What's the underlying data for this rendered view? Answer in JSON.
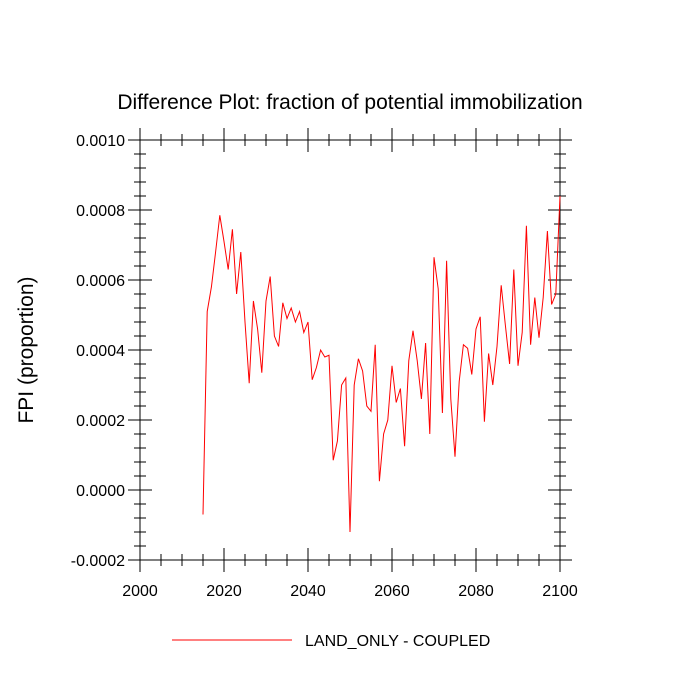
{
  "chart_data": {
    "type": "line",
    "title": "Difference Plot: fraction of potential immobilization",
    "xlabel": "",
    "ylabel": "FPI  (proportion)",
    "xlim": [
      2000,
      2100
    ],
    "ylim": [
      -0.0002,
      0.001
    ],
    "x_ticks": [
      2000,
      2020,
      2040,
      2060,
      2080,
      2100
    ],
    "x_tick_labels": [
      "2000",
      "2020",
      "2040",
      "2060",
      "2080",
      "2100"
    ],
    "y_ticks": [
      -0.0002,
      0.0,
      0.0002,
      0.0004,
      0.0006,
      0.0008,
      0.001
    ],
    "y_tick_labels": [
      "-0.0002",
      "0.0000",
      "0.0002",
      "0.0004",
      "0.0006",
      "0.0008",
      "0.0010"
    ],
    "grid": false,
    "legend_position": "bottom-center",
    "series": [
      {
        "name": "LAND_ONLY - COUPLED",
        "color": "#ff0000",
        "x": [
          2015,
          2016,
          2017,
          2018,
          2019,
          2020,
          2021,
          2022,
          2023,
          2024,
          2025,
          2026,
          2027,
          2028,
          2029,
          2030,
          2031,
          2032,
          2033,
          2034,
          2035,
          2036,
          2037,
          2038,
          2039,
          2040,
          2041,
          2042,
          2043,
          2044,
          2045,
          2046,
          2047,
          2048,
          2049,
          2050,
          2051,
          2052,
          2053,
          2054,
          2055,
          2056,
          2057,
          2058,
          2059,
          2060,
          2061,
          2062,
          2063,
          2064,
          2065,
          2066,
          2067,
          2068,
          2069,
          2070,
          2071,
          2072,
          2073,
          2074,
          2075,
          2076,
          2077,
          2078,
          2079,
          2080,
          2081,
          2082,
          2083,
          2084,
          2085,
          2086,
          2087,
          2088,
          2089,
          2090,
          2091,
          2092,
          2093,
          2094,
          2095,
          2096,
          2097,
          2098,
          2099,
          2100
        ],
        "y": [
          -7e-05,
          0.00051,
          0.00058,
          0.00068,
          0.000785,
          0.00071,
          0.00063,
          0.000745,
          0.00056,
          0.00068,
          0.00048,
          0.000305,
          0.00054,
          0.00046,
          0.000335,
          0.00054,
          0.00061,
          0.00044,
          0.00041,
          0.000535,
          0.00049,
          0.00052,
          0.00048,
          0.00051,
          0.00045,
          0.00048,
          0.000315,
          0.00035,
          0.0004,
          0.00038,
          0.000385,
          8.5e-05,
          0.00014,
          0.0003,
          0.00032,
          -0.00012,
          0.0003,
          0.000375,
          0.00034,
          0.00024,
          0.000225,
          0.000415,
          2.5e-05,
          0.00016,
          0.0002,
          0.000355,
          0.00025,
          0.00029,
          0.000125,
          0.00037,
          0.000455,
          0.00037,
          0.00026,
          0.00042,
          0.00016,
          0.000665,
          0.000575,
          0.00022,
          0.000655,
          0.00026,
          9.5e-05,
          0.00031,
          0.000415,
          0.000405,
          0.00033,
          0.00046,
          0.000495,
          0.000195,
          0.00039,
          0.0003,
          0.00041,
          0.000585,
          0.00047,
          0.00036,
          0.00063,
          0.000355,
          0.00045,
          0.000755,
          0.000415,
          0.00055,
          0.000435,
          0.00055,
          0.00074,
          0.00053,
          0.00056,
          0.00084
        ]
      }
    ]
  }
}
